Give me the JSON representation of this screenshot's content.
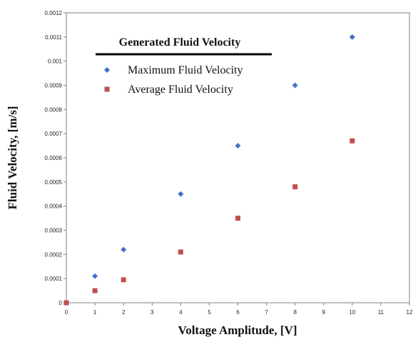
{
  "chart_data": {
    "type": "scatter",
    "title": "",
    "xlabel": "Voltage Amplitude, [V]",
    "ylabel": "Fluid Velocity, [m/s]",
    "xlim": [
      0,
      12
    ],
    "ylim": [
      0,
      0.0012
    ],
    "x_ticks": [
      "0",
      "1",
      "2",
      "3",
      "4",
      "5",
      "6",
      "7",
      "8",
      "9",
      "10",
      "11",
      "12"
    ],
    "y_ticks": [
      "0",
      "0.0001",
      "0.0002",
      "0.0003",
      "0.0004",
      "0.0005",
      "0.0006",
      "0.0007",
      "0.0008",
      "0.0009",
      "0.001",
      "0.0011",
      "0.0012"
    ],
    "grid": false,
    "legend": {
      "title": "Generated Fluid Velocity",
      "position": "top-left"
    },
    "series": [
      {
        "name": "Maximum Fluid Velocity",
        "marker": "diamond",
        "color": "#4472c4",
        "x": [
          0,
          1,
          2,
          4,
          6,
          8,
          10
        ],
        "y": [
          0,
          0.00011,
          0.00022,
          0.00045,
          0.00065,
          0.0009,
          0.0011
        ]
      },
      {
        "name": "Average Fluid Velocity",
        "marker": "square",
        "color": "#c0504d",
        "x": [
          0,
          1,
          2,
          4,
          6,
          8,
          10
        ],
        "y": [
          0,
          5e-05,
          9.5e-05,
          0.00021,
          0.00035,
          0.00048,
          0.00067
        ]
      }
    ]
  }
}
